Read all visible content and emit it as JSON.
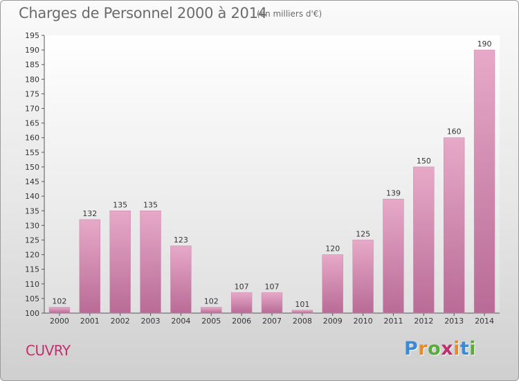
{
  "header": {
    "title": "Charges de Personnel 2000 à 2014",
    "unit": "(en milliers d'€)"
  },
  "footer": {
    "commune": "CUVRY",
    "logo_text": "Proxiti",
    "logo_colors": [
      "#3a8ad6",
      "#e8892b",
      "#5aaa3c",
      "#c0306e",
      "#e8892b",
      "#3a8ad6",
      "#5aaa3c"
    ]
  },
  "chart_data": {
    "type": "bar",
    "categories": [
      "2000",
      "2001",
      "2002",
      "2003",
      "2004",
      "2005",
      "2006",
      "2007",
      "2008",
      "2009",
      "2010",
      "2011",
      "2012",
      "2013",
      "2014"
    ],
    "values": [
      102,
      132,
      135,
      135,
      123,
      102,
      107,
      107,
      101,
      120,
      125,
      139,
      150,
      160,
      190
    ],
    "title": "Charges de Personnel 2000 à 2014",
    "subtitle": "(en milliers d'€)",
    "xlabel": "",
    "ylabel": "",
    "ylim": [
      100,
      195
    ],
    "ytick_step": 5,
    "grid": false,
    "legend": "none",
    "bar_color": "#d66fa4",
    "data_labels": true
  }
}
